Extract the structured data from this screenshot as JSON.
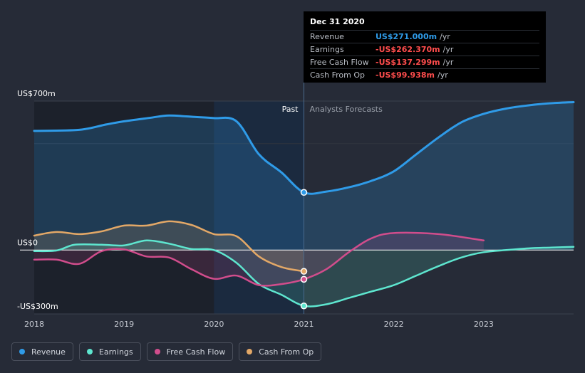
{
  "colors": {
    "background": "#262b37",
    "revenue": "#2f9be8",
    "earnings": "#5ee6cf",
    "free_cash_flow": "#d14d8c",
    "cash_from_op": "#e3a867",
    "negative_value": "#ff4d4d",
    "positive_value": "#2f9be8"
  },
  "tooltip": {
    "date": "Dec 31 2020",
    "rows": [
      {
        "label": "Revenue",
        "value": "US$271.000m",
        "unit": "/yr",
        "color": "#2f9be8"
      },
      {
        "label": "Earnings",
        "value": "-US$262.370m",
        "unit": "/yr",
        "color": "#ff4d4d"
      },
      {
        "label": "Free Cash Flow",
        "value": "-US$137.299m",
        "unit": "/yr",
        "color": "#ff4d4d"
      },
      {
        "label": "Cash From Op",
        "value": "-US$99.938m",
        "unit": "/yr",
        "color": "#ff4d4d"
      }
    ]
  },
  "chart_data": {
    "type": "line",
    "y_unit_labels": [
      "US$700m",
      "US$0",
      "-US$300m"
    ],
    "ylim": [
      -300,
      700
    ],
    "xlim": [
      2018,
      2024
    ],
    "x_ticks": [
      "2018",
      "2019",
      "2020",
      "2021",
      "2022",
      "2023"
    ],
    "past_label": "Past",
    "forecast_label": "Analysts Forecasts",
    "divider_x": 2021.0,
    "series": [
      {
        "name": "Revenue",
        "color": "#2f9be8",
        "points": [
          [
            2018,
            560
          ],
          [
            2018.5,
            565
          ],
          [
            2018.8,
            590
          ],
          [
            2019,
            605
          ],
          [
            2019.3,
            622
          ],
          [
            2019.5,
            632
          ],
          [
            2019.8,
            625
          ],
          [
            2020,
            620
          ],
          [
            2020.25,
            605
          ],
          [
            2020.5,
            450
          ],
          [
            2020.75,
            365
          ],
          [
            2021,
            271
          ],
          [
            2021.25,
            275
          ],
          [
            2021.5,
            295
          ],
          [
            2021.75,
            325
          ],
          [
            2022,
            370
          ],
          [
            2022.25,
            450
          ],
          [
            2022.5,
            530
          ],
          [
            2022.75,
            600
          ],
          [
            2023,
            640
          ],
          [
            2023.25,
            665
          ],
          [
            2023.5,
            680
          ],
          [
            2023.75,
            690
          ],
          [
            2024,
            695
          ]
        ]
      },
      {
        "name": "Earnings",
        "color": "#5ee6cf",
        "points": [
          [
            2018,
            -5
          ],
          [
            2018.25,
            -2
          ],
          [
            2018.45,
            25
          ],
          [
            2018.75,
            25
          ],
          [
            2019,
            22
          ],
          [
            2019.25,
            45
          ],
          [
            2019.5,
            30
          ],
          [
            2019.75,
            5
          ],
          [
            2020,
            0
          ],
          [
            2020.25,
            -60
          ],
          [
            2020.5,
            -160
          ],
          [
            2020.75,
            -210
          ],
          [
            2021,
            -262
          ],
          [
            2021.25,
            -255
          ],
          [
            2021.5,
            -225
          ],
          [
            2021.75,
            -195
          ],
          [
            2022,
            -165
          ],
          [
            2022.25,
            -120
          ],
          [
            2022.5,
            -75
          ],
          [
            2022.75,
            -35
          ],
          [
            2023,
            -10
          ],
          [
            2023.25,
            0
          ],
          [
            2023.5,
            8
          ],
          [
            2023.75,
            12
          ],
          [
            2024,
            15
          ]
        ]
      },
      {
        "name": "Free Cash Flow",
        "color": "#d14d8c",
        "points": [
          [
            2018,
            -45
          ],
          [
            2018.25,
            -45
          ],
          [
            2018.5,
            -65
          ],
          [
            2018.75,
            -5
          ],
          [
            2019,
            3
          ],
          [
            2019.25,
            -30
          ],
          [
            2019.5,
            -35
          ],
          [
            2019.75,
            -90
          ],
          [
            2020,
            -135
          ],
          [
            2020.25,
            -120
          ],
          [
            2020.5,
            -165
          ],
          [
            2020.75,
            -160
          ],
          [
            2021,
            -137
          ],
          [
            2021.25,
            -90
          ],
          [
            2021.5,
            -10
          ],
          [
            2021.75,
            55
          ],
          [
            2022,
            80
          ],
          [
            2022.5,
            75
          ],
          [
            2023,
            45
          ]
        ]
      },
      {
        "name": "Cash From Op",
        "color": "#e3a867",
        "points": [
          [
            2018,
            68
          ],
          [
            2018.25,
            85
          ],
          [
            2018.5,
            75
          ],
          [
            2018.75,
            88
          ],
          [
            2019,
            115
          ],
          [
            2019.25,
            115
          ],
          [
            2019.5,
            135
          ],
          [
            2019.75,
            118
          ],
          [
            2020,
            75
          ],
          [
            2020.25,
            65
          ],
          [
            2020.5,
            -30
          ],
          [
            2020.75,
            -80
          ],
          [
            2021,
            -100
          ]
        ]
      }
    ],
    "markers": [
      {
        "series": "Revenue",
        "x": 2021.0,
        "y": 271
      },
      {
        "series": "Earnings",
        "x": 2021.0,
        "y": -262.37
      },
      {
        "series": "Free Cash Flow",
        "x": 2021.0,
        "y": -137.299
      },
      {
        "series": "Cash From Op",
        "x": 2021.0,
        "y": -99.938
      }
    ]
  },
  "legend": [
    {
      "label": "Revenue",
      "color": "#2f9be8"
    },
    {
      "label": "Earnings",
      "color": "#5ee6cf"
    },
    {
      "label": "Free Cash Flow",
      "color": "#d14d8c"
    },
    {
      "label": "Cash From Op",
      "color": "#e3a867"
    }
  ]
}
